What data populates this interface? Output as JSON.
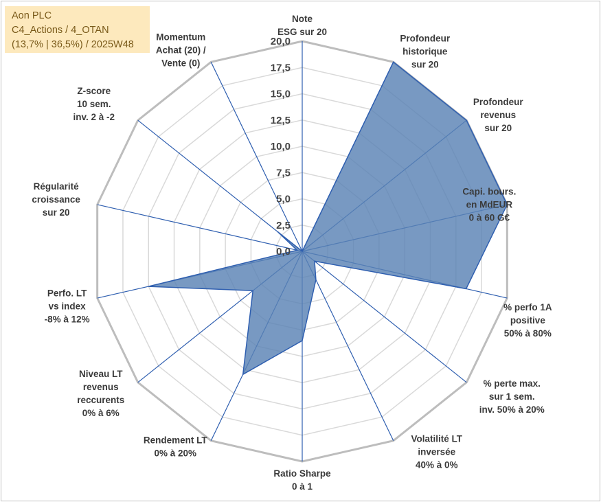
{
  "title_box": {
    "line1": "Aon PLC",
    "line2": "C4_Actions / 4_OTAN",
    "line3": "(13,7% | 36,5%) / 2025W48"
  },
  "colors": {
    "fill": "#5a83b5",
    "stroke": "#2f5fb0",
    "grid": "#c8c8c8",
    "title_bg": "#fde9bd"
  },
  "chart_data": {
    "type": "radar",
    "rmin": 0,
    "rmax": 20,
    "ticks": [
      "0,0",
      "2,5",
      "5,0",
      "7,5",
      "10,0",
      "12,5",
      "15,0",
      "17,5",
      "20,0"
    ],
    "axes": [
      {
        "label": [
          "Note",
          "ESG sur 20"
        ],
        "value": 0
      },
      {
        "label": [
          "Profondeur",
          "historique",
          "sur 20"
        ],
        "value": 20
      },
      {
        "label": [
          "Profondeur",
          "revenus",
          "sur 20"
        ],
        "value": 20
      },
      {
        "label": [
          "Capi. bours.",
          "en MdEUR",
          "0 à 60 G€"
        ],
        "value": 20
      },
      {
        "label": [
          "% perfo 1A",
          "positive",
          "50% à 80%"
        ],
        "value": 16
      },
      {
        "label": [
          "% perte max.",
          "sur 1 sem.",
          "inv. 50% à 20%"
        ],
        "value": 1.5
      },
      {
        "label": [
          "Volatilité LT",
          "inversée",
          "40% à 0%"
        ],
        "value": 3
      },
      {
        "label": [
          "Ratio Sharpe",
          "0 à 1"
        ],
        "value": 8.5
      },
      {
        "label": [
          "Rendement LT",
          "0% à 20%"
        ],
        "value": 13
      },
      {
        "label": [
          "Niveau LT",
          "revenus",
          "reccurents",
          "0% à 6%"
        ],
        "value": 6
      },
      {
        "label": [
          "Perfo. LT",
          "vs index",
          "-8% à 12%"
        ],
        "value": 15
      },
      {
        "label": [
          "Régularité",
          "croissance",
          "sur 20"
        ],
        "value": 0.5
      },
      {
        "label": [
          "Z-score",
          "10 sem.",
          "inv. 2 à -2"
        ],
        "value": 3
      },
      {
        "label": [
          "Momentum",
          "Achat (20) /",
          "Vente (0)"
        ],
        "value": 0
      }
    ]
  }
}
